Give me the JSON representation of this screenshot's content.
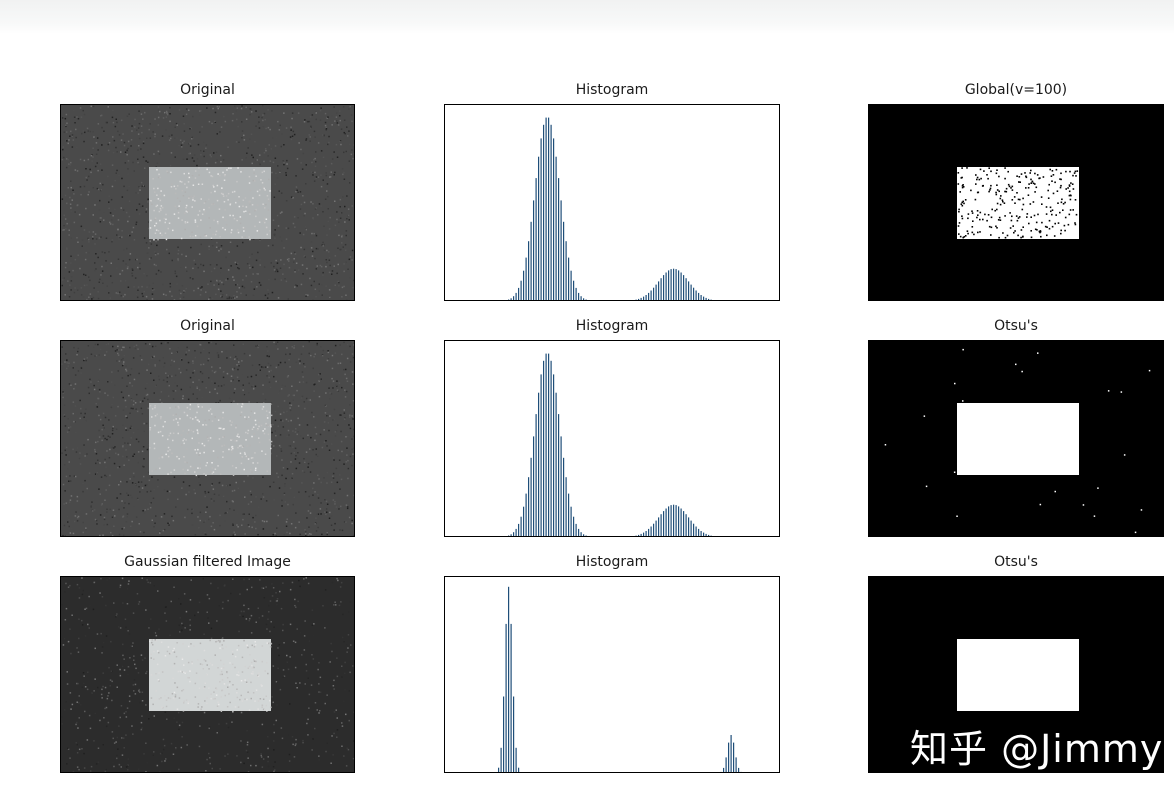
{
  "chart_data": [
    {
      "type": "image",
      "title": "Original",
      "content": "noisy-image",
      "colors": {
        "background": "#4a4a4a",
        "rectangle": "#b3b7b8"
      }
    },
    {
      "type": "bar",
      "title": "Histogram",
      "xlabel": "",
      "ylabel": "",
      "xlim": [
        0,
        256
      ],
      "ylim": [
        0,
        1
      ],
      "grid": false,
      "legend": false,
      "bar_color": "#1f4e79",
      "peaks": [
        {
          "center": 75,
          "sigma": 10,
          "height": 0.97
        },
        {
          "center": 176,
          "sigma": 12,
          "height": 0.17
        }
      ]
    },
    {
      "type": "image",
      "title": "Global(v=100)",
      "content": "binary-noisy-rect"
    },
    {
      "type": "image",
      "title": "Original",
      "content": "noisy-image",
      "colors": {
        "background": "#4a4a4a",
        "rectangle": "#b3b7b8"
      }
    },
    {
      "type": "bar",
      "title": "Histogram",
      "xlabel": "",
      "ylabel": "",
      "xlim": [
        0,
        256
      ],
      "ylim": [
        0,
        1
      ],
      "grid": false,
      "legend": false,
      "bar_color": "#1f4e79",
      "peaks": [
        {
          "center": 75,
          "sigma": 10,
          "height": 0.97
        },
        {
          "center": 176,
          "sigma": 12,
          "height": 0.17
        }
      ]
    },
    {
      "type": "image",
      "title": "Otsu's",
      "content": "binary-clean-rect-specks"
    },
    {
      "type": "image",
      "title": "Gaussian filtered Image",
      "content": "blurred-image",
      "colors": {
        "background": "#2c2c2c",
        "rectangle": "#d2d6d6"
      }
    },
    {
      "type": "bar",
      "title": "Histogram",
      "xlabel": "",
      "ylabel": "",
      "xlim": [
        0,
        256
      ],
      "ylim": [
        0,
        1
      ],
      "grid": false,
      "legend": false,
      "bar_color": "#1f4e79",
      "peaks": [
        {
          "center": 44,
          "sigma": 3,
          "height": 0.98
        },
        {
          "center": 222,
          "sigma": 3,
          "height": 0.2
        }
      ]
    },
    {
      "type": "image",
      "title": "Otsu's",
      "content": "binary-clean-rect"
    }
  ],
  "watermark": "知乎 @Jimmy"
}
